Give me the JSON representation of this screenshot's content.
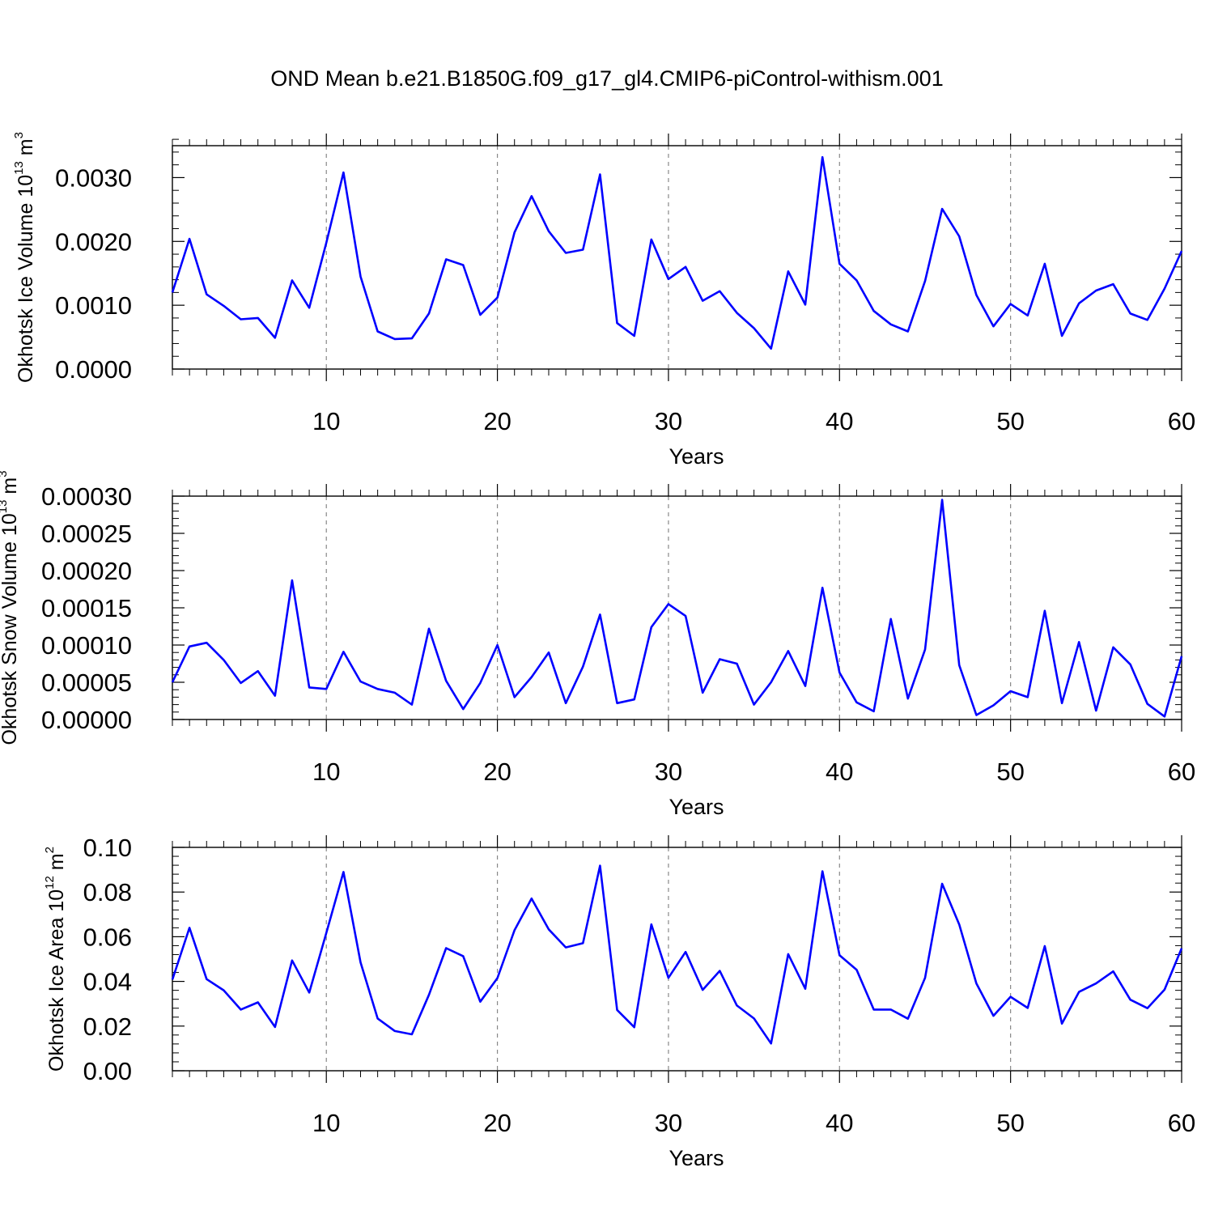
{
  "title": "OND Mean b.e21.B1850G.f09_g17_gl4.CMIP6-piControl-withism.001",
  "colors": {
    "line": "#0000ff",
    "axis": "#000000",
    "grid": "#888888"
  },
  "chart_data": [
    {
      "type": "line",
      "title": "OND Mean b.e21.B1850G.f09_g17_gl4.CMIP6-piControl-withism.001",
      "xlabel": "Years",
      "ylabel_text": "Okhotsk Ice Volume 10",
      "ylabel_exp": "13",
      "ylabel_unit": " m",
      "ylabel_unit_exp": "3",
      "xlim": [
        1,
        60
      ],
      "ylim": [
        0,
        0.0035
      ],
      "xticks": [
        10,
        20,
        30,
        40,
        50,
        60
      ],
      "xtick_labels": [
        "10",
        "20",
        "30",
        "40",
        "50",
        "60"
      ],
      "yticks": [
        0,
        0.001,
        0.002,
        0.003
      ],
      "ytick_labels": [
        "0.0000",
        "0.0010",
        "0.0020",
        "0.0030"
      ],
      "x": [
        1,
        2,
        3,
        4,
        5,
        6,
        7,
        8,
        9,
        10,
        11,
        12,
        13,
        14,
        15,
        16,
        17,
        18,
        19,
        20,
        21,
        22,
        23,
        24,
        25,
        26,
        27,
        28,
        29,
        30,
        31,
        32,
        33,
        34,
        35,
        36,
        37,
        38,
        39,
        40,
        41,
        42,
        43,
        44,
        45,
        46,
        47,
        48,
        49,
        50,
        51,
        52,
        53,
        54,
        55,
        56,
        57,
        58,
        59,
        60
      ],
      "values": [
        0.0012,
        0.00204,
        0.00117,
        0.00099,
        0.00078,
        0.0008,
        0.00049,
        0.00139,
        0.00096,
        0.00198,
        0.00308,
        0.00145,
        0.00059,
        0.00047,
        0.00048,
        0.00087,
        0.00172,
        0.00163,
        0.00085,
        0.00112,
        0.00214,
        0.00271,
        0.00216,
        0.00182,
        0.00187,
        0.00305,
        0.00072,
        0.00052,
        0.00203,
        0.00141,
        0.0016,
        0.00107,
        0.00122,
        0.00088,
        0.00064,
        0.00032,
        0.00153,
        0.00101,
        0.00332,
        0.00165,
        0.00139,
        0.00091,
        0.0007,
        0.00059,
        0.00138,
        0.00251,
        0.00208,
        0.00116,
        0.00067,
        0.00102,
        0.00084,
        0.00165,
        0.00052,
        0.00103,
        0.00123,
        0.00133,
        0.00087,
        0.00077,
        0.00126,
        0.00185
      ]
    },
    {
      "type": "line",
      "xlabel": "Years",
      "ylabel_text": "Okhotsk Snow Volume 10",
      "ylabel_exp": "13",
      "ylabel_unit": " m",
      "ylabel_unit_exp": "3",
      "xlim": [
        1,
        60
      ],
      "ylim": [
        0,
        0.0003
      ],
      "xticks": [
        10,
        20,
        30,
        40,
        50,
        60
      ],
      "xtick_labels": [
        "10",
        "20",
        "30",
        "40",
        "50",
        "60"
      ],
      "yticks": [
        0,
        5e-05,
        0.0001,
        0.00015,
        0.0002,
        0.00025,
        0.0003
      ],
      "ytick_labels": [
        "0.00000",
        "0.00005",
        "0.00010",
        "0.00015",
        "0.00020",
        "0.00025",
        "0.00030"
      ],
      "x": [
        1,
        2,
        3,
        4,
        5,
        6,
        7,
        8,
        9,
        10,
        11,
        12,
        13,
        14,
        15,
        16,
        17,
        18,
        19,
        20,
        21,
        22,
        23,
        24,
        25,
        26,
        27,
        28,
        29,
        30,
        31,
        32,
        33,
        34,
        35,
        36,
        37,
        38,
        39,
        40,
        41,
        42,
        43,
        44,
        45,
        46,
        47,
        48,
        49,
        50,
        51,
        52,
        53,
        54,
        55,
        56,
        57,
        58,
        59,
        60
      ],
      "values": [
        5e-05,
        9.8e-05,
        0.000103,
        8e-05,
        4.9e-05,
        6.5e-05,
        3.2e-05,
        0.000187,
        4.3e-05,
        4.1e-05,
        9.1e-05,
        5.1e-05,
        4.1e-05,
        3.6e-05,
        2e-05,
        0.000122,
        5.2e-05,
        1.4e-05,
        4.9e-05,
        0.0001,
        3e-05,
        5.7e-05,
        9e-05,
        2.2e-05,
        7.1e-05,
        0.000141,
        2.2e-05,
        2.7e-05,
        0.000124,
        0.000155,
        0.000139,
        3.6e-05,
        8.1e-05,
        7.5e-05,
        2e-05,
        5e-05,
        9.2e-05,
        4.5e-05,
        0.000177,
        6.3e-05,
        2.3e-05,
        1.1e-05,
        0.000135,
        2.8e-05,
        9.4e-05,
        0.000295,
        7.3e-05,
        6e-06,
        1.9e-05,
        3.8e-05,
        3e-05,
        0.000146,
        2.2e-05,
        0.000104,
        1.2e-05,
        9.7e-05,
        7.4e-05,
        2.1e-05,
        4e-06,
        8.5e-05
      ]
    },
    {
      "type": "line",
      "xlabel": "Years",
      "ylabel_text": "Okhotsk Ice Area 10",
      "ylabel_exp": "12",
      "ylabel_unit": " m",
      "ylabel_unit_exp": "2",
      "xlim": [
        1,
        60
      ],
      "ylim": [
        0,
        0.1
      ],
      "xticks": [
        10,
        20,
        30,
        40,
        50,
        60
      ],
      "xtick_labels": [
        "10",
        "20",
        "30",
        "40",
        "50",
        "60"
      ],
      "yticks": [
        0,
        0.02,
        0.04,
        0.06,
        0.08,
        0.1
      ],
      "ytick_labels": [
        "0.00",
        "0.02",
        "0.04",
        "0.06",
        "0.08",
        "0.10"
      ],
      "x": [
        1,
        2,
        3,
        4,
        5,
        6,
        7,
        8,
        9,
        10,
        11,
        12,
        13,
        14,
        15,
        16,
        17,
        18,
        19,
        20,
        21,
        22,
        23,
        24,
        25,
        26,
        27,
        28,
        29,
        30,
        31,
        32,
        33,
        34,
        35,
        36,
        37,
        38,
        39,
        40,
        41,
        42,
        43,
        44,
        45,
        46,
        47,
        48,
        49,
        50,
        51,
        52,
        53,
        54,
        55,
        56,
        57,
        58,
        59,
        60
      ],
      "values": [
        0.0408,
        0.064,
        0.041,
        0.036,
        0.0274,
        0.0306,
        0.0196,
        0.0494,
        0.035,
        0.0617,
        0.089,
        0.0485,
        0.0234,
        0.0178,
        0.0163,
        0.034,
        0.0549,
        0.0513,
        0.0309,
        0.0415,
        0.0629,
        0.0771,
        0.0633,
        0.0552,
        0.0571,
        0.0918,
        0.0272,
        0.0195,
        0.0655,
        0.0416,
        0.0532,
        0.0362,
        0.0447,
        0.0292,
        0.0234,
        0.0122,
        0.0522,
        0.0367,
        0.0893,
        0.0517,
        0.0452,
        0.0274,
        0.0274,
        0.0233,
        0.0416,
        0.0837,
        0.0655,
        0.0391,
        0.0246,
        0.0331,
        0.0281,
        0.0558,
        0.0211,
        0.0353,
        0.0391,
        0.0445,
        0.0318,
        0.028,
        0.0363,
        0.0548
      ]
    }
  ]
}
